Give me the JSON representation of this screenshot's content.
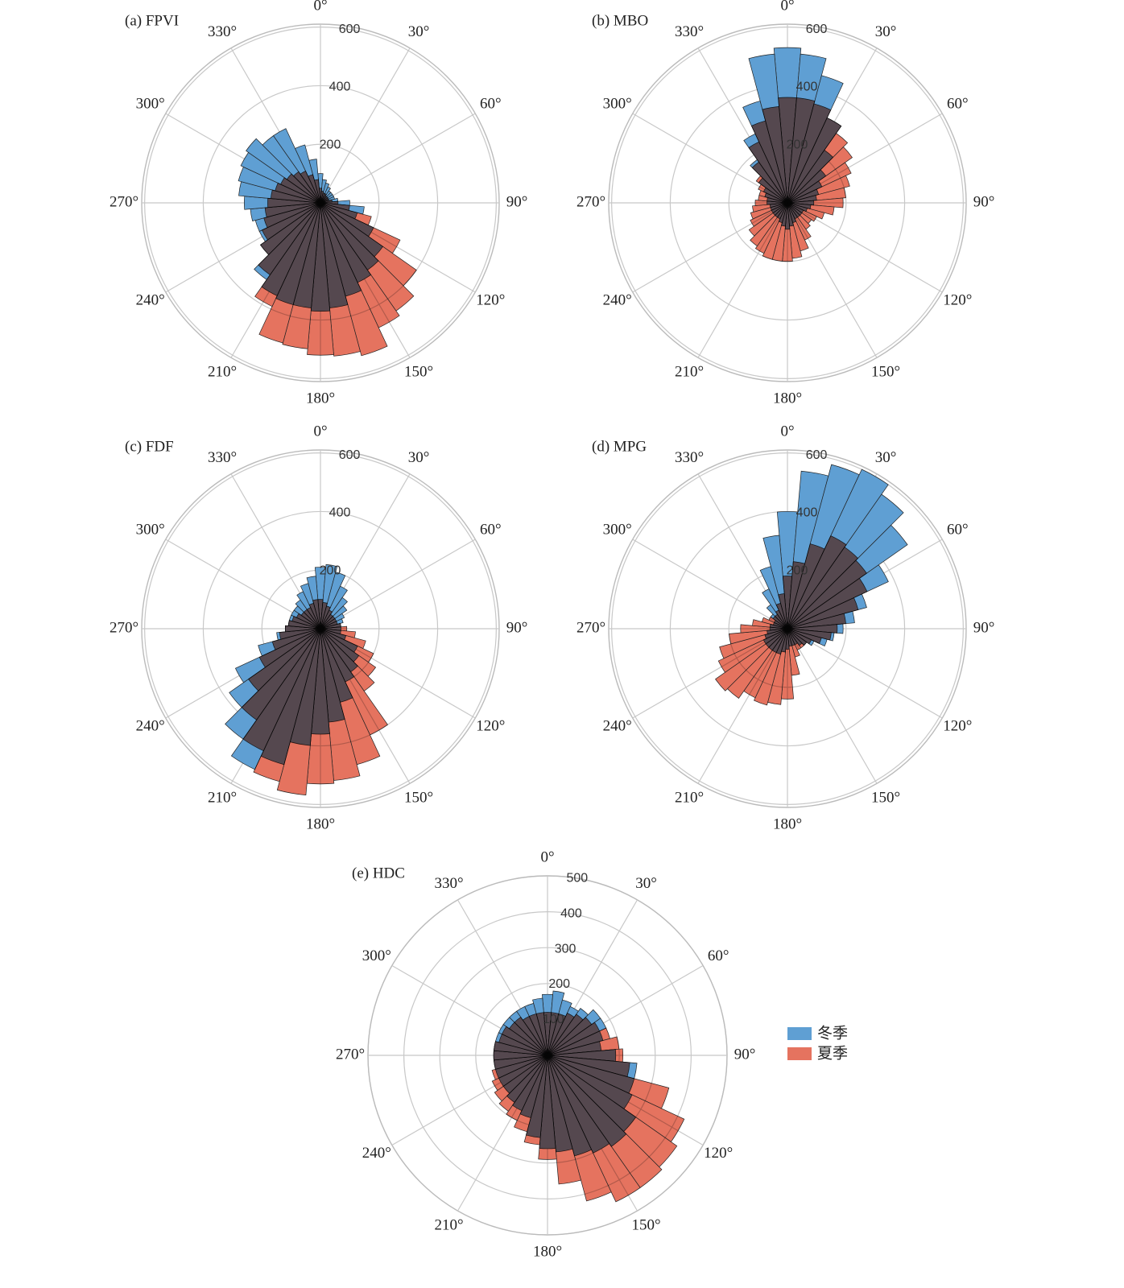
{
  "chart_data": [
    {
      "type": "rose",
      "title": "(a) FPVI",
      "x": [
        0,
        10,
        20,
        30,
        40,
        50,
        60,
        70,
        80,
        90,
        100,
        110,
        120,
        130,
        140,
        150,
        160,
        170,
        180,
        190,
        200,
        210,
        220,
        230,
        240,
        250,
        260,
        270,
        280,
        290,
        300,
        310,
        320,
        330,
        340,
        350
      ],
      "xticks": [
        {
          "value": 0,
          "label": "0°"
        },
        {
          "value": 30,
          "label": "30°"
        },
        {
          "value": 60,
          "label": "60°"
        },
        {
          "value": 90,
          "label": "90°"
        },
        {
          "value": 120,
          "label": "120°"
        },
        {
          "value": 150,
          "label": "150°"
        },
        {
          "value": 180,
          "label": "180°"
        },
        {
          "value": 210,
          "label": "210°"
        },
        {
          "value": 240,
          "label": "240°"
        },
        {
          "value": 270,
          "label": "270°"
        },
        {
          "value": 300,
          "label": "300°"
        },
        {
          "value": 330,
          "label": "330°"
        }
      ],
      "ylim": [
        0,
        610
      ],
      "yticks": [
        200,
        400,
        600
      ],
      "series": [
        {
          "name": "冬季",
          "color": "#5f9fd3",
          "values": [
            100,
            80,
            70,
            60,
            50,
            50,
            50,
            50,
            60,
            100,
            150,
            130,
            200,
            260,
            280,
            300,
            330,
            360,
            370,
            360,
            360,
            350,
            320,
            250,
            230,
            230,
            240,
            260,
            280,
            290,
            300,
            310,
            280,
            280,
            205,
            150
          ]
        },
        {
          "name": "夏季",
          "color": "#e5735f",
          "values": [
            50,
            40,
            35,
            35,
            30,
            30,
            30,
            30,
            40,
            60,
            100,
            180,
            300,
            400,
            450,
            470,
            540,
            525,
            520,
            500,
            495,
            390,
            300,
            250,
            220,
            200,
            190,
            180,
            170,
            160,
            150,
            140,
            130,
            120,
            100,
            80
          ]
        }
      ]
    },
    {
      "type": "rose",
      "title": "(b) MBO",
      "x": [
        0,
        10,
        20,
        30,
        40,
        50,
        60,
        70,
        80,
        90,
        100,
        110,
        120,
        130,
        140,
        150,
        160,
        170,
        180,
        190,
        200,
        210,
        220,
        230,
        240,
        250,
        260,
        270,
        280,
        290,
        300,
        310,
        320,
        330,
        340,
        350
      ],
      "xticks": [
        {
          "value": 0,
          "label": "0°"
        },
        {
          "value": 30,
          "label": "30°"
        },
        {
          "value": 60,
          "label": "60°"
        },
        {
          "value": 90,
          "label": "90°"
        },
        {
          "value": 120,
          "label": "120°"
        },
        {
          "value": 150,
          "label": "150°"
        },
        {
          "value": 180,
          "label": "180°"
        },
        {
          "value": 210,
          "label": "210°"
        },
        {
          "value": 240,
          "label": "240°"
        },
        {
          "value": 270,
          "label": "270°"
        },
        {
          "value": 300,
          "label": "300°"
        },
        {
          "value": 330,
          "label": "330°"
        }
      ],
      "ylim": [
        0,
        610
      ],
      "yticks": [
        200,
        400,
        600
      ],
      "series": [
        {
          "name": "冬季",
          "color": "#5f9fd3",
          "values": [
            530,
            510,
            450,
            320,
            220,
            160,
            130,
            110,
            100,
            90,
            80,
            70,
            60,
            60,
            60,
            60,
            70,
            80,
            90,
            80,
            70,
            60,
            60,
            60,
            60,
            60,
            60,
            70,
            70,
            80,
            90,
            120,
            180,
            260,
            360,
            510
          ]
        },
        {
          "name": "夏季",
          "color": "#e5735f",
          "values": [
            360,
            360,
            350,
            320,
            290,
            270,
            240,
            220,
            200,
            190,
            160,
            130,
            110,
            100,
            110,
            140,
            170,
            190,
            200,
            200,
            200,
            190,
            180,
            160,
            140,
            130,
            120,
            110,
            100,
            100,
            110,
            130,
            170,
            230,
            290,
            330
          ]
        }
      ]
    },
    {
      "type": "rose",
      "title": "(c) FDF",
      "x": [
        0,
        10,
        20,
        30,
        40,
        50,
        60,
        70,
        80,
        90,
        100,
        110,
        120,
        130,
        140,
        150,
        160,
        170,
        180,
        190,
        200,
        210,
        220,
        230,
        240,
        250,
        260,
        270,
        280,
        290,
        300,
        310,
        320,
        330,
        340,
        350
      ],
      "xticks": [
        {
          "value": 0,
          "label": "0°"
        },
        {
          "value": 30,
          "label": "30°"
        },
        {
          "value": 60,
          "label": "60°"
        },
        {
          "value": 90,
          "label": "90°"
        },
        {
          "value": 120,
          "label": "120°"
        },
        {
          "value": 150,
          "label": "150°"
        },
        {
          "value": 180,
          "label": "180°"
        },
        {
          "value": 210,
          "label": "210°"
        },
        {
          "value": 240,
          "label": "240°"
        },
        {
          "value": 270,
          "label": "270°"
        },
        {
          "value": 300,
          "label": "300°"
        },
        {
          "value": 330,
          "label": "330°"
        }
      ],
      "ylim": [
        0,
        610
      ],
      "yticks": [
        200,
        400,
        600
      ],
      "series": [
        {
          "name": "冬季",
          "color": "#5f9fd3",
          "values": [
            210,
            220,
            200,
            160,
            130,
            110,
            90,
            80,
            70,
            70,
            70,
            90,
            140,
            160,
            180,
            200,
            260,
            320,
            360,
            400,
            480,
            530,
            460,
            380,
            320,
            220,
            150,
            120,
            110,
            110,
            110,
            110,
            120,
            140,
            160,
            180
          ]
        },
        {
          "name": "夏季",
          "color": "#e5735f",
          "values": [
            100,
            90,
            80,
            70,
            60,
            60,
            60,
            60,
            70,
            90,
            120,
            160,
            200,
            230,
            260,
            400,
            480,
            520,
            530,
            570,
            540,
            460,
            380,
            300,
            230,
            170,
            140,
            120,
            110,
            100,
            90,
            80,
            80,
            80,
            90,
            100
          ]
        }
      ]
    },
    {
      "type": "rose",
      "title": "(d) MPG",
      "x": [
        0,
        10,
        20,
        30,
        40,
        50,
        60,
        70,
        80,
        90,
        100,
        110,
        120,
        130,
        140,
        150,
        160,
        170,
        180,
        190,
        200,
        210,
        220,
        230,
        240,
        250,
        260,
        270,
        280,
        290,
        300,
        310,
        320,
        330,
        340,
        350
      ],
      "xticks": [
        {
          "value": 0,
          "label": "0°"
        },
        {
          "value": 30,
          "label": "30°"
        },
        {
          "value": 60,
          "label": "60°"
        },
        {
          "value": 90,
          "label": "90°"
        },
        {
          "value": 120,
          "label": "120°"
        },
        {
          "value": 150,
          "label": "150°"
        },
        {
          "value": 180,
          "label": "180°"
        },
        {
          "value": 210,
          "label": "210°"
        },
        {
          "value": 240,
          "label": "240°"
        },
        {
          "value": 270,
          "label": "270°"
        },
        {
          "value": 300,
          "label": "300°"
        },
        {
          "value": 330,
          "label": "330°"
        }
      ],
      "ylim": [
        0,
        610
      ],
      "yticks": [
        200,
        400,
        600
      ],
      "series": [
        {
          "name": "冬季",
          "color": "#5f9fd3",
          "values": [
            400,
            540,
            580,
            600,
            560,
            500,
            380,
            280,
            230,
            190,
            160,
            140,
            100,
            80,
            70,
            60,
            60,
            60,
            70,
            80,
            90,
            90,
            90,
            90,
            90,
            80,
            70,
            60,
            60,
            50,
            50,
            70,
            100,
            150,
            220,
            320
          ]
        },
        {
          "name": "夏季",
          "color": "#e5735f",
          "values": [
            180,
            230,
            300,
            350,
            340,
            330,
            300,
            250,
            200,
            170,
            150,
            120,
            90,
            80,
            80,
            80,
            100,
            160,
            240,
            260,
            270,
            260,
            290,
            300,
            260,
            240,
            200,
            160,
            120,
            90,
            70,
            60,
            60,
            70,
            90,
            120
          ]
        }
      ]
    },
    {
      "type": "rose",
      "title": "(e) HDC",
      "x": [
        0,
        10,
        20,
        30,
        40,
        50,
        60,
        70,
        80,
        90,
        100,
        110,
        120,
        130,
        140,
        150,
        160,
        170,
        180,
        190,
        200,
        210,
        220,
        230,
        240,
        250,
        260,
        270,
        280,
        290,
        300,
        310,
        320,
        330,
        340,
        350
      ],
      "xticks": [
        {
          "value": 0,
          "label": "0°"
        },
        {
          "value": 30,
          "label": "30°"
        },
        {
          "value": 60,
          "label": "60°"
        },
        {
          "value": 90,
          "label": "90°"
        },
        {
          "value": 120,
          "label": "120°"
        },
        {
          "value": 150,
          "label": "150°"
        },
        {
          "value": 180,
          "label": "180°"
        },
        {
          "value": 210,
          "label": "210°"
        },
        {
          "value": 240,
          "label": "240°"
        },
        {
          "value": 270,
          "label": "270°"
        },
        {
          "value": 300,
          "label": "300°"
        },
        {
          "value": 330,
          "label": "330°"
        }
      ],
      "ylim": [
        0,
        500
      ],
      "yticks": [
        100,
        200,
        300,
        400,
        500
      ],
      "series": [
        {
          "name": "冬季",
          "color": "#5f9fd3",
          "values": [
            170,
            180,
            160,
            150,
            160,
            180,
            180,
            160,
            150,
            190,
            250,
            250,
            260,
            300,
            310,
            300,
            290,
            270,
            260,
            230,
            180,
            170,
            160,
            150,
            150,
            150,
            150,
            150,
            150,
            150,
            150,
            150,
            150,
            150,
            150,
            160
          ]
        },
        {
          "name": "夏季",
          "color": "#e5735f",
          "values": [
            120,
            120,
            120,
            130,
            140,
            150,
            160,
            180,
            200,
            210,
            230,
            350,
            420,
            440,
            450,
            450,
            420,
            360,
            290,
            250,
            220,
            200,
            190,
            180,
            170,
            160,
            150,
            150,
            150,
            140,
            140,
            130,
            130,
            120,
            120,
            120
          ]
        }
      ]
    }
  ]
}
